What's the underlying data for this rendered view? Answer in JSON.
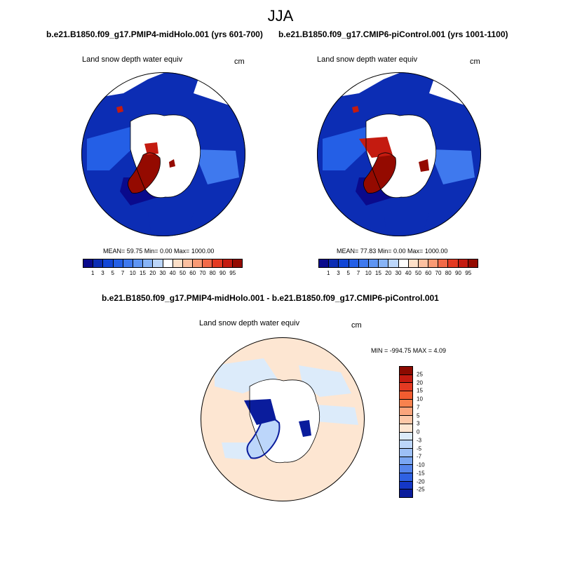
{
  "figure": {
    "season": "JJA"
  },
  "panels": [
    {
      "title": "b.e21.B1850.f09_g17.PMIP4-midHolo.001 (yrs 601-700)",
      "variable": "Land snow depth water equiv",
      "units": "cm",
      "stats": "MEAN=  59.75  Min=   0.00  Max= 1000.00"
    },
    {
      "title": "b.e21.B1850.f09_g17.CMIP6-piControl.001 (yrs 1001-1100)",
      "variable": "Land snow depth water equiv",
      "units": "cm",
      "stats": "MEAN=  77.83  Min=   0.00  Max= 1000.00"
    }
  ],
  "diff_panel": {
    "title": "b.e21.B1850.f09_g17.PMIP4-midHolo.001 - b.e21.B1850.f09_g17.CMIP6-piControl.001",
    "variable": "Land snow depth water equiv",
    "units": "cm",
    "stats": "MIN = -994.75 MAX =   4.09"
  },
  "colorbars": {
    "abs_colors": [
      "#0a0a8c",
      "#0c2db4",
      "#1246d6",
      "#245fe6",
      "#3f79ee",
      "#5f95f2",
      "#88b4f6",
      "#bcd6fa",
      "#ffffff",
      "#fde0c8",
      "#fcc0a0",
      "#f99a74",
      "#f26a48",
      "#e43a22",
      "#c41b10",
      "#940a00"
    ],
    "abs_ticks": [
      "1",
      "3",
      "5",
      "7",
      "10",
      "15",
      "20",
      "30",
      "40",
      "50",
      "60",
      "70",
      "80",
      "90",
      "95"
    ],
    "diff_colors_top_to_bottom": [
      "#8c0a00",
      "#c41b10",
      "#e43a22",
      "#f25c30",
      "#f7824e",
      "#fba57c",
      "#fdc8a8",
      "#fde6d2",
      "#dcebfa",
      "#bcd6fa",
      "#9dc0f6",
      "#7aa6f2",
      "#5585ec",
      "#2f61e2",
      "#1437c6",
      "#0a1c9c"
    ],
    "diff_ticks_top_to_bottom": [
      "25",
      "20",
      "15",
      "10",
      "7",
      "5",
      "3",
      "0",
      "-3",
      "-5",
      "-7",
      "-10",
      "-15",
      "-20",
      "-25"
    ]
  }
}
